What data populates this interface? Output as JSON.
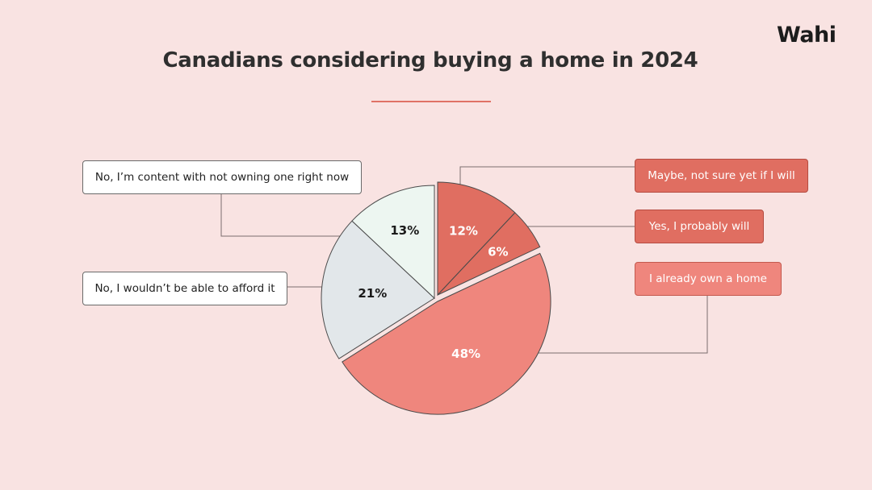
{
  "brand": {
    "logo": "Wahi"
  },
  "header": {
    "title": "Canadians considering buying a home in 2024"
  },
  "chart_data": {
    "type": "pie",
    "title": "Canadians considering buying a home in 2024",
    "slices": [
      {
        "label": "Maybe, not sure yet if I will",
        "value": 12,
        "value_label": "12%",
        "color": "#e06e61",
        "exploded": true
      },
      {
        "label": "Yes, I probably will",
        "value": 6,
        "value_label": "6%",
        "color": "#e06e61",
        "exploded": true
      },
      {
        "label": "I already own a home",
        "value": 48,
        "value_label": "48%",
        "color": "#ef867d",
        "exploded": true
      },
      {
        "label": "No, I wouldn’t be able to afford it",
        "value": 21,
        "value_label": "21%",
        "color": "#e2e7ea",
        "exploded": false
      },
      {
        "label": "No, I’m content with not owning one right now",
        "value": 13,
        "value_label": "13%",
        "color": "#edf6f1",
        "exploded": false
      }
    ],
    "legend_placement": "callouts"
  }
}
